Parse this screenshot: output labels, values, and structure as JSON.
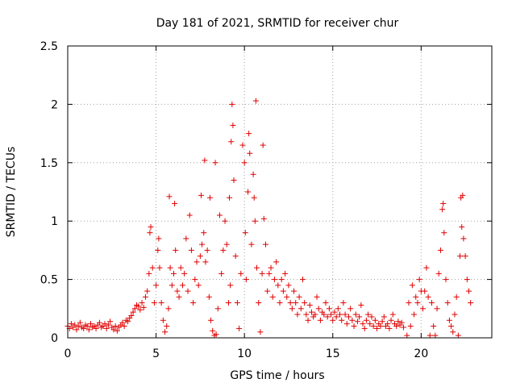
{
  "chart_data": {
    "type": "scatter",
    "title": "Day 181 of 2021, SRMTID for receiver chur",
    "xlabel": "GPS time / hours",
    "ylabel": "SRMTID / TECUs",
    "xlim": [
      0,
      24
    ],
    "ylim": [
      0,
      2.5
    ],
    "xticks": [
      0,
      5,
      10,
      15,
      20
    ],
    "xtick_labels": [
      "0",
      "5",
      "10",
      "15",
      "20"
    ],
    "yticks": [
      0,
      0.5,
      1,
      1.5,
      2,
      2.5
    ],
    "ytick_labels": [
      "0",
      "0.5",
      "1",
      "1.5",
      "2",
      "2.5"
    ],
    "grid": true,
    "marker": "+",
    "color": "#e00000",
    "series": [
      {
        "name": "SRMTID",
        "points": [
          [
            0.0,
            0.1
          ],
          [
            0.1,
            0.08
          ],
          [
            0.2,
            0.12
          ],
          [
            0.3,
            0.09
          ],
          [
            0.4,
            0.11
          ],
          [
            0.5,
            0.07
          ],
          [
            0.6,
            0.1
          ],
          [
            0.7,
            0.13
          ],
          [
            0.8,
            0.09
          ],
          [
            0.9,
            0.08
          ],
          [
            1.0,
            0.11
          ],
          [
            1.1,
            0.1
          ],
          [
            1.2,
            0.07
          ],
          [
            1.3,
            0.12
          ],
          [
            1.4,
            0.09
          ],
          [
            1.5,
            0.1
          ],
          [
            1.6,
            0.08
          ],
          [
            1.7,
            0.11
          ],
          [
            1.8,
            0.13
          ],
          [
            1.9,
            0.09
          ],
          [
            2.0,
            0.1
          ],
          [
            2.1,
            0.12
          ],
          [
            2.2,
            0.08
          ],
          [
            2.3,
            0.11
          ],
          [
            2.4,
            0.14
          ],
          [
            2.5,
            0.09
          ],
          [
            2.6,
            0.07
          ],
          [
            2.7,
            0.1
          ],
          [
            2.8,
            0.06
          ],
          [
            2.9,
            0.09
          ],
          [
            3.0,
            0.11
          ],
          [
            3.1,
            0.13
          ],
          [
            3.2,
            0.1
          ],
          [
            3.3,
            0.15
          ],
          [
            3.4,
            0.14
          ],
          [
            3.5,
            0.17
          ],
          [
            3.6,
            0.19
          ],
          [
            3.7,
            0.22
          ],
          [
            3.8,
            0.25
          ],
          [
            3.9,
            0.28
          ],
          [
            4.0,
            0.27
          ],
          [
            4.1,
            0.24
          ],
          [
            4.2,
            0.3
          ],
          [
            4.3,
            0.26
          ],
          [
            4.4,
            0.35
          ],
          [
            4.5,
            0.4
          ],
          [
            4.6,
            0.55
          ],
          [
            4.65,
            0.9
          ],
          [
            4.7,
            0.95
          ],
          [
            4.8,
            0.6
          ],
          [
            4.9,
            0.3
          ],
          [
            5.0,
            0.45
          ],
          [
            5.1,
            0.75
          ],
          [
            5.15,
            0.85
          ],
          [
            5.2,
            0.6
          ],
          [
            5.3,
            0.3
          ],
          [
            5.4,
            0.15
          ],
          [
            5.5,
            0.05
          ],
          [
            5.6,
            0.1
          ],
          [
            5.7,
            0.25
          ],
          [
            5.75,
            1.21
          ],
          [
            5.8,
            0.6
          ],
          [
            5.9,
            0.45
          ],
          [
            6.0,
            0.55
          ],
          [
            6.05,
            1.15
          ],
          [
            6.1,
            0.75
          ],
          [
            6.2,
            0.4
          ],
          [
            6.3,
            0.35
          ],
          [
            6.4,
            0.6
          ],
          [
            6.5,
            0.45
          ],
          [
            6.6,
            0.55
          ],
          [
            6.7,
            0.85
          ],
          [
            6.8,
            0.4
          ],
          [
            6.9,
            1.05
          ],
          [
            7.0,
            0.75
          ],
          [
            7.1,
            0.3
          ],
          [
            7.2,
            0.5
          ],
          [
            7.3,
            0.65
          ],
          [
            7.4,
            0.45
          ],
          [
            7.5,
            0.7
          ],
          [
            7.55,
            1.22
          ],
          [
            7.6,
            0.8
          ],
          [
            7.7,
            0.9
          ],
          [
            7.75,
            1.52
          ],
          [
            7.8,
            0.65
          ],
          [
            7.9,
            0.75
          ],
          [
            8.0,
            0.35
          ],
          [
            8.05,
            1.2
          ],
          [
            8.1,
            0.15
          ],
          [
            8.2,
            0.06
          ],
          [
            8.3,
            0.02
          ],
          [
            8.35,
            1.5
          ],
          [
            8.4,
            0.03
          ],
          [
            8.5,
            0.25
          ],
          [
            8.6,
            1.05
          ],
          [
            8.7,
            0.55
          ],
          [
            8.8,
            0.75
          ],
          [
            8.9,
            1.0
          ],
          [
            9.0,
            0.8
          ],
          [
            9.1,
            0.3
          ],
          [
            9.15,
            1.2
          ],
          [
            9.2,
            0.45
          ],
          [
            9.25,
            1.68
          ],
          [
            9.3,
            2.0
          ],
          [
            9.35,
            1.82
          ],
          [
            9.4,
            1.35
          ],
          [
            9.5,
            0.7
          ],
          [
            9.6,
            0.3
          ],
          [
            9.7,
            0.08
          ],
          [
            9.8,
            0.55
          ],
          [
            9.9,
            1.65
          ],
          [
            10.0,
            1.5
          ],
          [
            10.05,
            0.9
          ],
          [
            10.1,
            0.5
          ],
          [
            10.2,
            1.25
          ],
          [
            10.25,
            1.75
          ],
          [
            10.3,
            1.58
          ],
          [
            10.4,
            0.8
          ],
          [
            10.5,
            1.4
          ],
          [
            10.55,
            1.2
          ],
          [
            10.6,
            1.0
          ],
          [
            10.65,
            2.03
          ],
          [
            10.7,
            0.6
          ],
          [
            10.8,
            0.3
          ],
          [
            10.9,
            0.05
          ],
          [
            11.0,
            0.55
          ],
          [
            11.05,
            1.65
          ],
          [
            11.1,
            1.02
          ],
          [
            11.2,
            0.8
          ],
          [
            11.3,
            0.4
          ],
          [
            11.4,
            0.55
          ],
          [
            11.5,
            0.6
          ],
          [
            11.6,
            0.35
          ],
          [
            11.7,
            0.5
          ],
          [
            11.8,
            0.65
          ],
          [
            11.9,
            0.45
          ],
          [
            12.0,
            0.3
          ],
          [
            12.1,
            0.5
          ],
          [
            12.2,
            0.4
          ],
          [
            12.3,
            0.55
          ],
          [
            12.4,
            0.35
          ],
          [
            12.5,
            0.45
          ],
          [
            12.6,
            0.3
          ],
          [
            12.7,
            0.25
          ],
          [
            12.8,
            0.4
          ],
          [
            12.9,
            0.3
          ],
          [
            13.0,
            0.2
          ],
          [
            13.1,
            0.35
          ],
          [
            13.2,
            0.25
          ],
          [
            13.3,
            0.5
          ],
          [
            13.4,
            0.3
          ],
          [
            13.5,
            0.2
          ],
          [
            13.6,
            0.15
          ],
          [
            13.7,
            0.28
          ],
          [
            13.8,
            0.22
          ],
          [
            13.9,
            0.18
          ],
          [
            14.0,
            0.2
          ],
          [
            14.1,
            0.35
          ],
          [
            14.2,
            0.25
          ],
          [
            14.3,
            0.15
          ],
          [
            14.4,
            0.22
          ],
          [
            14.5,
            0.2
          ],
          [
            14.6,
            0.3
          ],
          [
            14.7,
            0.18
          ],
          [
            14.8,
            0.25
          ],
          [
            14.9,
            0.2
          ],
          [
            15.0,
            0.15
          ],
          [
            15.1,
            0.22
          ],
          [
            15.2,
            0.18
          ],
          [
            15.3,
            0.25
          ],
          [
            15.4,
            0.2
          ],
          [
            15.5,
            0.15
          ],
          [
            15.6,
            0.3
          ],
          [
            15.7,
            0.2
          ],
          [
            15.8,
            0.12
          ],
          [
            15.9,
            0.18
          ],
          [
            16.0,
            0.25
          ],
          [
            16.1,
            0.15
          ],
          [
            16.2,
            0.1
          ],
          [
            16.3,
            0.2
          ],
          [
            16.4,
            0.14
          ],
          [
            16.5,
            0.18
          ],
          [
            16.6,
            0.28
          ],
          [
            16.7,
            0.12
          ],
          [
            16.8,
            0.08
          ],
          [
            16.9,
            0.15
          ],
          [
            17.0,
            0.2
          ],
          [
            17.1,
            0.12
          ],
          [
            17.2,
            0.18
          ],
          [
            17.3,
            0.1
          ],
          [
            17.4,
            0.15
          ],
          [
            17.5,
            0.08
          ],
          [
            17.6,
            0.12
          ],
          [
            17.7,
            0.1
          ],
          [
            17.8,
            0.14
          ],
          [
            17.9,
            0.18
          ],
          [
            18.0,
            0.1
          ],
          [
            18.1,
            0.12
          ],
          [
            18.2,
            0.08
          ],
          [
            18.3,
            0.15
          ],
          [
            18.4,
            0.2
          ],
          [
            18.5,
            0.12
          ],
          [
            18.6,
            0.1
          ],
          [
            18.7,
            0.14
          ],
          [
            18.8,
            0.11
          ],
          [
            18.9,
            0.13
          ],
          [
            19.0,
            0.09
          ],
          [
            19.2,
            0.02
          ],
          [
            19.3,
            0.3
          ],
          [
            19.4,
            0.1
          ],
          [
            19.5,
            0.45
          ],
          [
            19.6,
            0.2
          ],
          [
            19.7,
            0.35
          ],
          [
            19.8,
            0.3
          ],
          [
            19.9,
            0.5
          ],
          [
            20.0,
            0.4
          ],
          [
            20.1,
            0.25
          ],
          [
            20.2,
            0.4
          ],
          [
            20.3,
            0.6
          ],
          [
            20.4,
            0.35
          ],
          [
            20.5,
            0.02
          ],
          [
            20.6,
            0.3
          ],
          [
            20.7,
            0.1
          ],
          [
            20.8,
            0.02
          ],
          [
            20.9,
            0.25
          ],
          [
            21.0,
            0.55
          ],
          [
            21.1,
            0.75
          ],
          [
            21.2,
            1.1
          ],
          [
            21.25,
            1.15
          ],
          [
            21.3,
            0.9
          ],
          [
            21.4,
            0.5
          ],
          [
            21.5,
            0.3
          ],
          [
            21.6,
            0.15
          ],
          [
            21.7,
            0.1
          ],
          [
            21.8,
            0.05
          ],
          [
            21.9,
            0.2
          ],
          [
            22.0,
            0.35
          ],
          [
            22.1,
            0.02
          ],
          [
            22.2,
            0.7
          ],
          [
            22.25,
            1.2
          ],
          [
            22.3,
            0.95
          ],
          [
            22.35,
            1.22
          ],
          [
            22.4,
            0.85
          ],
          [
            22.5,
            0.7
          ],
          [
            22.6,
            0.5
          ],
          [
            22.7,
            0.4
          ],
          [
            22.8,
            0.3
          ]
        ]
      }
    ]
  }
}
